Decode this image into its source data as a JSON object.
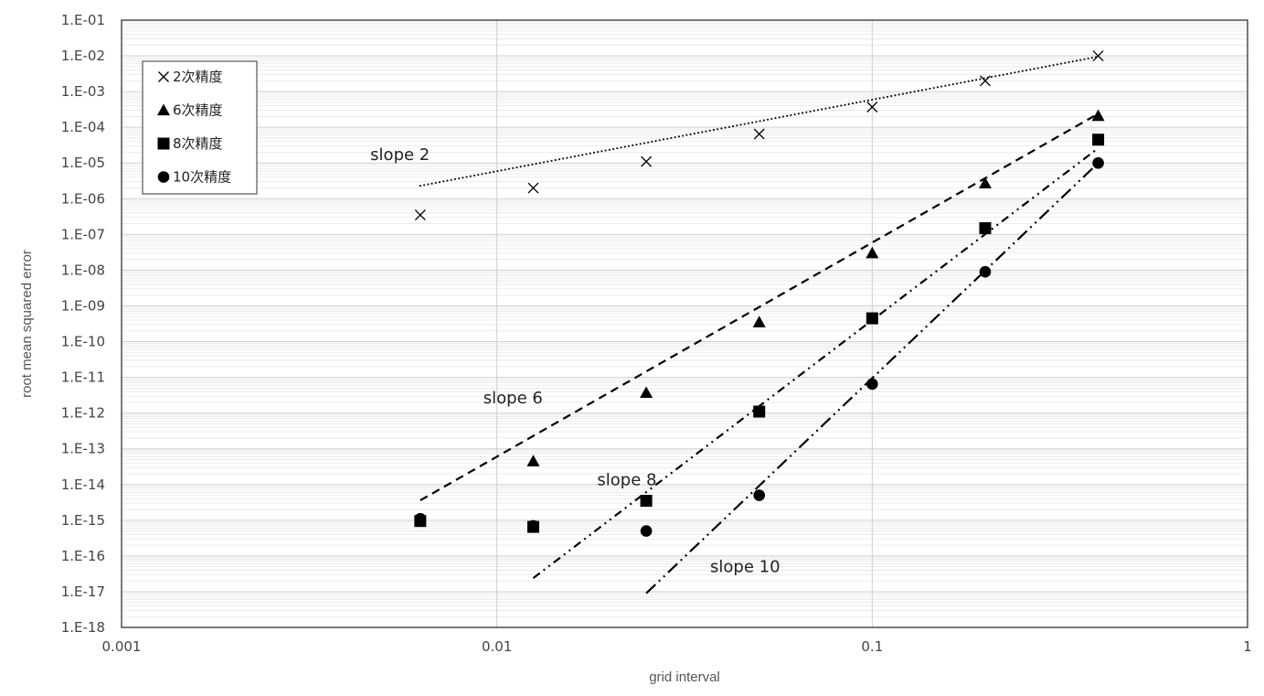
{
  "chart_data": {
    "type": "scatter",
    "title": "",
    "xlabel": "grid interval",
    "ylabel": "root mean squared error",
    "x_scale": "log",
    "y_scale": "log",
    "xlim": [
      0.001,
      1
    ],
    "ylim": [
      1e-18,
      0.1
    ],
    "x_tick_labels": [
      "0.001",
      "0.01",
      "0.1",
      "1"
    ],
    "y_tick_labels": [
      "1.E-18",
      "1.E-17",
      "1.E-16",
      "1.E-15",
      "1.E-14",
      "1.E-13",
      "1.E-12",
      "1.E-11",
      "1.E-10",
      "1.E-09",
      "1.E-08",
      "1.E-07",
      "1.E-06",
      "1.E-05",
      "1.E-04",
      "1.E-03",
      "1.E-02",
      "1.E-01"
    ],
    "grid": {
      "major_x": true,
      "major_y": true,
      "minor_y": true
    },
    "legend_position": "top-left",
    "series": [
      {
        "name": "2次精度",
        "marker": "x",
        "x": [
          0.00625,
          0.0125,
          0.025,
          0.05,
          0.1,
          0.2,
          0.4
        ],
        "y": [
          3.5e-07,
          2e-06,
          1.1e-05,
          6.5e-05,
          0.00037,
          0.002,
          0.01
        ]
      },
      {
        "name": "6次精度",
        "marker": "triangle",
        "x": [
          0.0125,
          0.025,
          0.05,
          0.1,
          0.2,
          0.4
        ],
        "y": [
          4.5e-14,
          3.7e-12,
          3.5e-10,
          3e-08,
          2.7e-06,
          0.00021
        ]
      },
      {
        "name": "8次精度",
        "marker": "square",
        "x": [
          0.00625,
          0.0125,
          0.025,
          0.05,
          0.1,
          0.2,
          0.4
        ],
        "y": [
          9.5e-16,
          6.5e-16,
          3.5e-15,
          1.1e-12,
          4.5e-10,
          1.5e-07,
          4.5e-05
        ]
      },
      {
        "name": "10次精度",
        "marker": "circle",
        "x": [
          0.00625,
          0.0125,
          0.025,
          0.05,
          0.1,
          0.2,
          0.4
        ],
        "y": [
          1.1e-15,
          7e-16,
          5e-16,
          5e-15,
          6.5e-12,
          9e-09,
          1e-05
        ]
      }
    ],
    "reference_lines": [
      {
        "label": "slope 2",
        "style": "dotted",
        "x": [
          0.00625,
          0.4
        ],
        "y": [
          2.3e-06,
          0.0095
        ]
      },
      {
        "label": "slope 6",
        "style": "dashed",
        "x": [
          0.00625,
          0.4
        ],
        "y": [
          3.6e-15,
          0.00024
        ]
      },
      {
        "label": "slope 8",
        "style": "dash-dot-dot",
        "x": [
          0.0125,
          0.4
        ],
        "y": [
          2.4e-17,
          2.6e-05
        ]
      },
      {
        "label": "slope 10",
        "style": "long-dash-dot-dot",
        "x": [
          0.025,
          0.4
        ],
        "y": [
          9e-18,
          1e-05
        ]
      }
    ],
    "annotations": [
      {
        "text": "slope 2",
        "x": 0.0046,
        "y": 1.2e-05
      },
      {
        "text": "slope 6",
        "x": 0.0092,
        "y": 1.9e-12
      },
      {
        "text": "slope 8",
        "x": 0.0185,
        "y": 9.5e-15
      },
      {
        "text": "slope 10",
        "x": 0.037,
        "y": 3.5e-17
      }
    ]
  }
}
